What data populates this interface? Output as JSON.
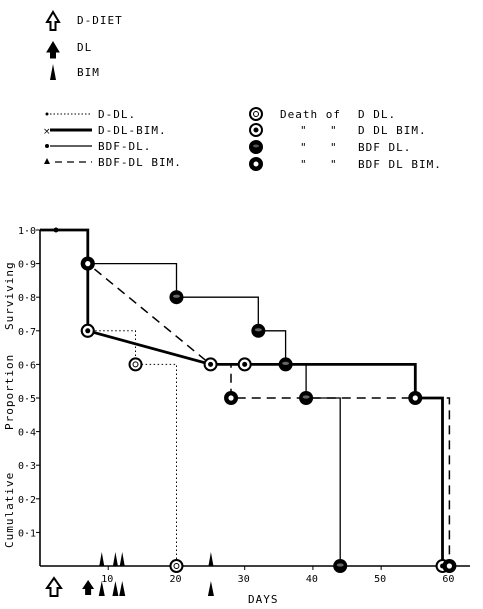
{
  "legend_top": [
    {
      "icon": "hollow-arrow-up-icon",
      "label": "D-DIET"
    },
    {
      "icon": "solid-arrow-up-icon",
      "label": "DL"
    },
    {
      "icon": "thin-arrow-up-icon",
      "label": "BIM"
    }
  ],
  "legend_lines": [
    {
      "label": "D-DL.",
      "style": "dotted"
    },
    {
      "label": "D-DL-BIM.",
      "style": "thick-cross"
    },
    {
      "label": "BDF-DL.",
      "style": "solid"
    },
    {
      "label": "BDF-DL BIM.",
      "style": "dashed"
    }
  ],
  "legend_deaths": [
    {
      "prefix": "Death of",
      "label": "D DL."
    },
    {
      "prefix": "\"",
      "label": "D DL BIM."
    },
    {
      "prefix": "\"",
      "label": "BDF DL."
    },
    {
      "prefix": "\"",
      "label": "BDF DL BIM."
    }
  ],
  "axes": {
    "ylabel_parts": [
      "Cumulative",
      "Proportion",
      "Surviving"
    ],
    "xlabel": "DAYS",
    "yticks": [
      "1·0",
      "0·9",
      "0·8",
      "0·7",
      "0·6",
      "0·5",
      "0·4",
      "0·3",
      "0·2",
      "0·1"
    ],
    "xticks": [
      "10",
      "20",
      "30",
      "40",
      "50",
      "60"
    ]
  },
  "chart_data": {
    "type": "line",
    "title": "",
    "xlabel": "DAYS",
    "ylabel": "Cumulative Proportion Surviving",
    "xlim": [
      0,
      62
    ],
    "ylim": [
      0,
      1.0
    ],
    "series": [
      {
        "name": "D-DL.",
        "style": "dotted",
        "steps": [
          [
            0,
            1.0
          ],
          [
            7,
            1.0
          ],
          [
            7,
            0.7
          ],
          [
            14,
            0.7
          ],
          [
            14,
            0.6
          ],
          [
            20,
            0.6
          ],
          [
            20,
            0
          ]
        ],
        "deaths": [
          [
            7,
            0.7
          ],
          [
            14,
            0.6
          ],
          [
            20,
            0
          ]
        ]
      },
      {
        "name": "D-DL-BIM.",
        "style": "thick",
        "steps": [
          [
            0,
            1.0
          ],
          [
            7,
            1.0
          ],
          [
            7,
            0.7
          ],
          [
            25,
            0.6
          ],
          [
            55,
            0.6
          ],
          [
            55,
            0.5
          ],
          [
            59,
            0.5
          ],
          [
            59,
            0
          ]
        ],
        "deaths": [
          [
            7,
            0.7
          ],
          [
            25,
            0.6
          ],
          [
            30,
            0.6
          ],
          [
            59,
            0
          ]
        ]
      },
      {
        "name": "BDF-DL.",
        "style": "solid",
        "steps": [
          [
            0,
            1.0
          ],
          [
            7,
            1.0
          ],
          [
            7,
            0.9
          ],
          [
            20,
            0.9
          ],
          [
            20,
            0.8
          ],
          [
            32,
            0.8
          ],
          [
            32,
            0.7
          ],
          [
            36,
            0.7
          ],
          [
            36,
            0.6
          ],
          [
            39,
            0.6
          ],
          [
            39,
            0.5
          ],
          [
            44,
            0.5
          ],
          [
            44,
            0
          ]
        ],
        "deaths": [
          [
            7,
            0.9
          ],
          [
            20,
            0.8
          ],
          [
            32,
            0.7
          ],
          [
            36,
            0.6
          ],
          [
            39,
            0.5
          ],
          [
            44,
            0
          ]
        ]
      },
      {
        "name": "BDF-DL BIM.",
        "style": "dashed",
        "steps": [
          [
            0,
            1.0
          ],
          [
            7,
            1.0
          ],
          [
            7,
            0.9
          ],
          [
            25,
            0.6
          ],
          [
            28,
            0.6
          ],
          [
            28,
            0.5
          ],
          [
            55,
            0.5
          ],
          [
            55,
            0.5
          ],
          [
            60,
            0.5
          ],
          [
            60,
            0
          ]
        ],
        "deaths": [
          [
            7,
            0.9
          ],
          [
            28,
            0.5
          ],
          [
            55,
            0.5
          ],
          [
            60,
            0
          ]
        ]
      }
    ],
    "treatment_markers": {
      "D-DIET": [
        0
      ],
      "DL": [
        5
      ],
      "BIM": [
        7,
        9,
        10,
        23
      ]
    }
  }
}
